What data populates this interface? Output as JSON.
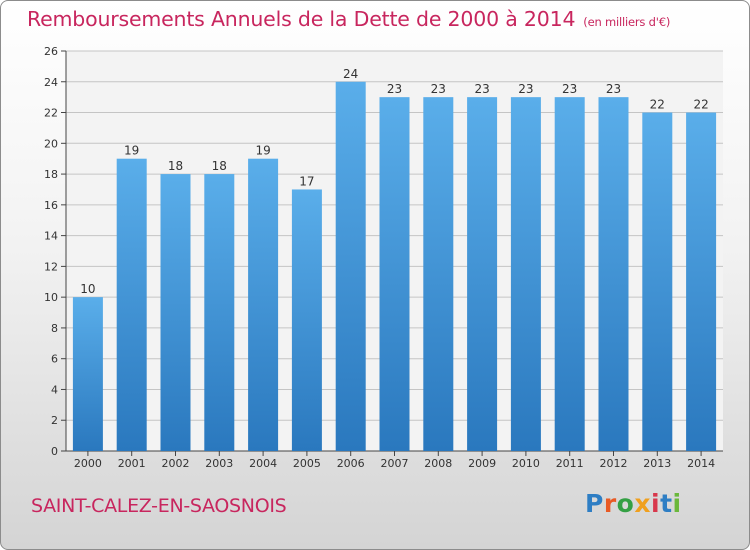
{
  "header": {
    "title": "Remboursements Annuels de la Dette de 2000 à 2014",
    "unit": "(en milliers d'€)"
  },
  "footer": {
    "commune": "SAINT-CALEZ-EN-SAOSNOIS",
    "brand": "Proxiti"
  },
  "colors": {
    "title": "#c8265e",
    "bar_light": "#5aaeea",
    "bar_dark": "#2a78be",
    "brand_letters": [
      "#2e7ec4",
      "#e85a24",
      "#34a044",
      "#f0a01e",
      "#d8384c",
      "#2e7ec4",
      "#6ab83c"
    ]
  },
  "chart_data": {
    "type": "bar",
    "title": "Remboursements Annuels de la Dette de 2000 à 2014",
    "subtitle": "(en milliers d'€)",
    "xlabel": "",
    "ylabel": "",
    "categories": [
      "2000",
      "2001",
      "2002",
      "2003",
      "2004",
      "2005",
      "2006",
      "2007",
      "2008",
      "2009",
      "2010",
      "2011",
      "2012",
      "2013",
      "2014"
    ],
    "values": [
      10,
      19,
      18,
      18,
      19,
      17,
      24,
      23,
      23,
      23,
      23,
      23,
      23,
      22,
      22
    ],
    "data_labels": [
      "10",
      "19",
      "18",
      "18",
      "19",
      "17",
      "24",
      "23",
      "23",
      "23",
      "23",
      "23",
      "23",
      "22",
      "22"
    ],
    "ylim": [
      0,
      26
    ],
    "yticks": [
      0,
      2,
      4,
      6,
      8,
      10,
      12,
      14,
      16,
      18,
      20,
      22,
      24,
      26
    ],
    "grid": true,
    "legend": "none"
  }
}
